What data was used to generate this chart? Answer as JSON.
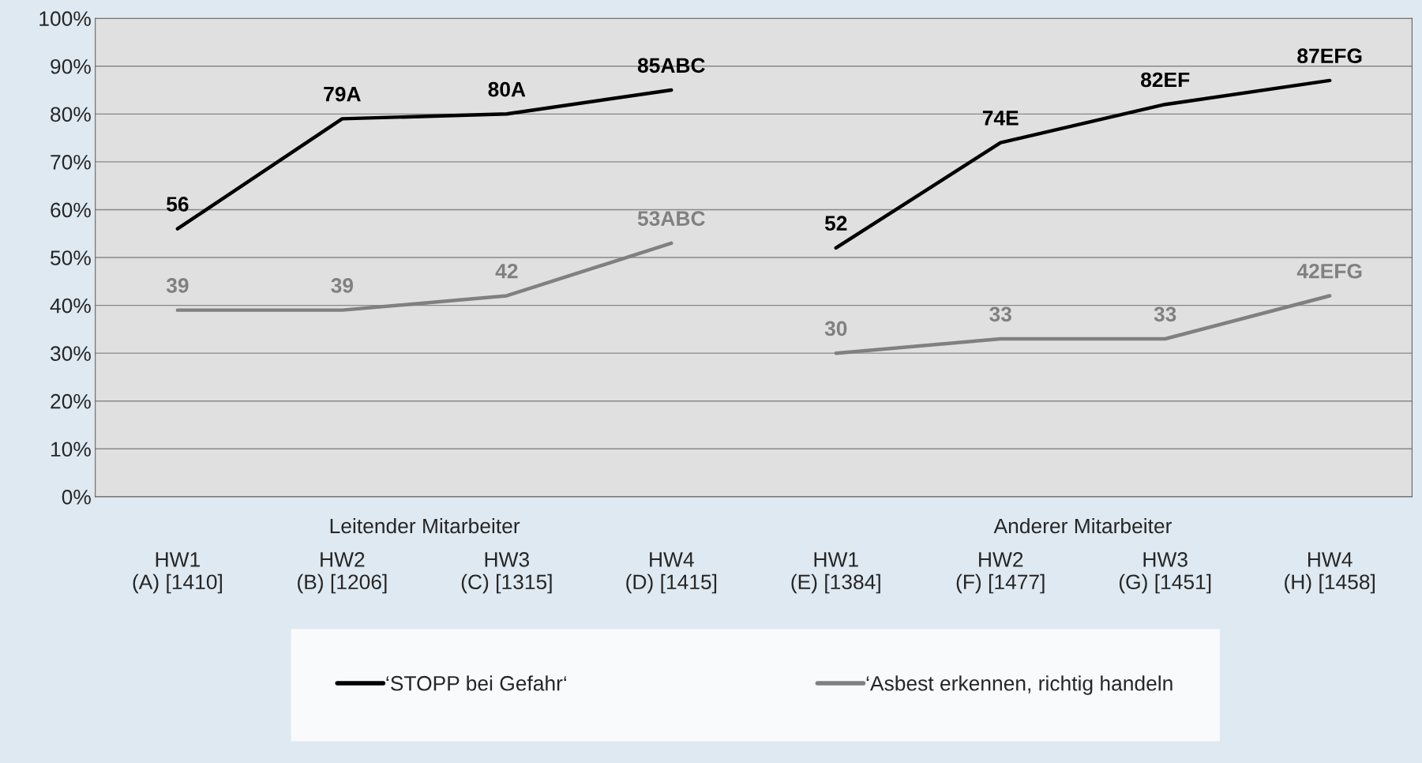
{
  "chart_data": {
    "type": "line",
    "categories": [
      "HW1\n(A) [1410]",
      "HW2\n(B) [1206]",
      "HW3\n(C) [1315]",
      "HW4\n(D) [1415]",
      "HW1\n(E) [1384]",
      "HW2\n(F) [1477]",
      "HW3\n(G) [1451]",
      "HW4\n(H) [1458]"
    ],
    "series": [
      {
        "name": "‘STOPP bei Gefahr‘",
        "color": "#000000",
        "values": [
          56,
          79,
          80,
          85,
          null,
          null,
          null,
          null
        ],
        "value_labels": [
          "56",
          "79A",
          "80A",
          "85ABC",
          null,
          null,
          null,
          null
        ]
      },
      {
        "name": "‘Asbest erkennen, richtig handeln",
        "color": "#808080",
        "values": [
          39,
          39,
          42,
          53,
          null,
          null,
          null,
          null
        ],
        "value_labels": [
          "39",
          "39",
          "42",
          "53ABC",
          null,
          null,
          null,
          null
        ]
      },
      {
        "color": "#000000",
        "values": [
          null,
          null,
          null,
          null,
          52,
          74,
          82,
          87
        ],
        "value_labels": [
          null,
          null,
          null,
          null,
          "52",
          "74E",
          "82EF",
          "87EFG"
        ]
      },
      {
        "color": "#808080",
        "values": [
          null,
          null,
          null,
          null,
          30,
          33,
          33,
          42
        ],
        "value_labels": [
          null,
          null,
          null,
          null,
          "30",
          "33",
          "33",
          "42EFG"
        ]
      }
    ],
    "ylim": [
      0,
      100
    ],
    "yticks": [
      {
        "value": 0,
        "label": "0%"
      },
      {
        "value": 10,
        "label": "10%"
      },
      {
        "value": 20,
        "label": "20%"
      },
      {
        "value": 30,
        "label": "30%"
      },
      {
        "value": 40,
        "label": "40%"
      },
      {
        "value": 50,
        "label": "50%"
      },
      {
        "value": 60,
        "label": "60%"
      },
      {
        "value": 70,
        "label": "70%"
      },
      {
        "value": 80,
        "label": "80%"
      },
      {
        "value": 90,
        "label": "90%"
      },
      {
        "value": 100,
        "label": "100%"
      }
    ],
    "annotations": [
      "Leitender Mitarbeiter",
      "Anderer Mitarbeiter"
    ],
    "grid": "y",
    "legend": "bottom",
    "marker": "none",
    "line_style": "solid"
  }
}
